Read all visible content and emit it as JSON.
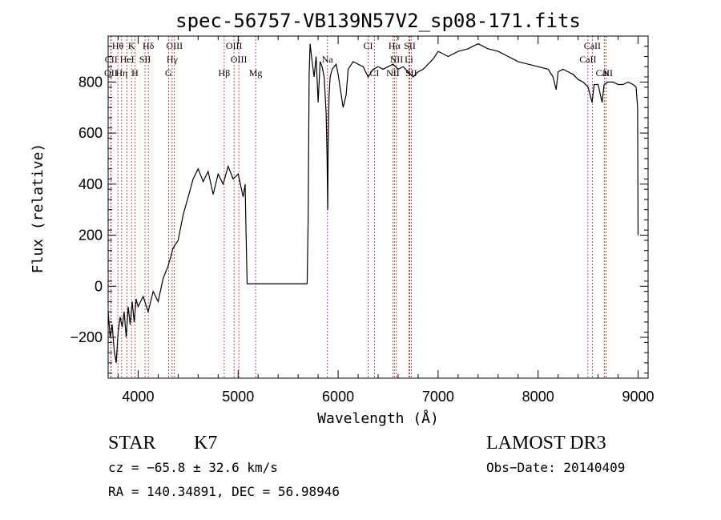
{
  "chart_data": {
    "type": "line",
    "title": "spec-56757-VB139N57V2_sp08-171.fits",
    "xlabel": "Wavelength (Å)",
    "ylabel": "Flux (relative)",
    "xlim": [
      3700,
      9100
    ],
    "ylim": [
      -360,
      980
    ],
    "x_ticks": [
      4000,
      5000,
      6000,
      7000,
      8000,
      9000
    ],
    "y_ticks": [
      -200,
      0,
      200,
      400,
      600,
      800
    ],
    "grid": false,
    "series": [
      {
        "x": [
          3700,
          3720,
          3740,
          3760,
          3780,
          3800,
          3820,
          3840,
          3860,
          3880,
          3900,
          3920,
          3940,
          3960,
          3980,
          4000,
          4050,
          4100,
          4150,
          4200,
          4250,
          4300,
          4350,
          4400,
          4450,
          4500,
          4550,
          4600,
          4650,
          4700,
          4750,
          4800,
          4850,
          4900,
          4950,
          5000,
          5050,
          5070,
          5080,
          5090,
          5100,
          5200,
          5400,
          5600,
          5690,
          5700,
          5710,
          5720,
          5740,
          5760,
          5780,
          5800,
          5820,
          5840,
          5860,
          5880,
          5890,
          5896,
          5900,
          5910,
          5920,
          5940,
          5960,
          5980,
          6000,
          6050,
          6080,
          6100,
          6150,
          6200,
          6250,
          6300,
          6350,
          6400,
          6450,
          6500,
          6550,
          6600,
          6650,
          6700,
          6750,
          6800,
          6850,
          6900,
          6950,
          7000,
          7100,
          7200,
          7300,
          7400,
          7500,
          7600,
          7700,
          7800,
          7900,
          8000,
          8100,
          8150,
          8180,
          8200,
          8250,
          8300,
          8350,
          8400,
          8450,
          8500,
          8540,
          8560,
          8600,
          8640,
          8660,
          8700,
          8750,
          8800,
          8850,
          8900,
          8950,
          8980,
          8995,
          9000
        ],
        "y": [
          -100,
          -200,
          -150,
          -250,
          -300,
          -180,
          -120,
          -160,
          -100,
          -200,
          -80,
          -150,
          -60,
          -140,
          -50,
          -80,
          -40,
          -100,
          -20,
          -60,
          30,
          80,
          150,
          180,
          280,
          350,
          420,
          460,
          410,
          450,
          360,
          440,
          400,
          470,
          420,
          440,
          350,
          400,
          200,
          10,
          10,
          10,
          10,
          10,
          10,
          250,
          830,
          950,
          880,
          820,
          900,
          720,
          880,
          860,
          820,
          680,
          500,
          300,
          550,
          750,
          820,
          850,
          860,
          870,
          830,
          700,
          750,
          850,
          880,
          870,
          860,
          820,
          850,
          860,
          850,
          860,
          870,
          850,
          860,
          840,
          820,
          840,
          850,
          870,
          890,
          920,
          900,
          920,
          930,
          950,
          930,
          920,
          900,
          880,
          870,
          860,
          850,
          820,
          770,
          840,
          850,
          840,
          830,
          810,
          800,
          780,
          720,
          790,
          790,
          720,
          790,
          800,
          800,
          790,
          790,
          800,
          790,
          780,
          700,
          200
        ]
      }
    ],
    "line_markers": [
      {
        "label": "Hθ",
        "x": 3797,
        "row": 1
      },
      {
        "label": "K",
        "x": 3934,
        "row": 1
      },
      {
        "label": "Hδ",
        "x": 4102,
        "row": 1
      },
      {
        "label": "OIII",
        "x": 4363,
        "row": 1
      },
      {
        "label": "OIII",
        "x": 4959,
        "row": 1
      },
      {
        "label": "CI",
        "x": 6300,
        "row": 1
      },
      {
        "label": "Hα",
        "x": 6563,
        "row": 1
      },
      {
        "label": "SII",
        "x": 6717,
        "row": 1
      },
      {
        "label": "CaII",
        "x": 8542,
        "row": 1
      },
      {
        "label": "CII",
        "x": 3730,
        "row": 2
      },
      {
        "label": "HeI",
        "x": 3889,
        "row": 2
      },
      {
        "label": "SII",
        "x": 4069,
        "row": 2
      },
      {
        "label": "Hγ",
        "x": 4340,
        "row": 2
      },
      {
        "label": "OIII",
        "x": 5007,
        "row": 2
      },
      {
        "label": "Na",
        "x": 5893,
        "row": 2
      },
      {
        "label": "NII",
        "x": 6584,
        "row": 2
      },
      {
        "label": "Li",
        "x": 6708,
        "row": 2
      },
      {
        "label": "CaII",
        "x": 8498,
        "row": 2
      },
      {
        "label": "OII",
        "x": 3727,
        "row": 3
      },
      {
        "label": "Hη",
        "x": 3835,
        "row": 3
      },
      {
        "label": "H",
        "x": 3968,
        "row": 3
      },
      {
        "label": "G",
        "x": 4304,
        "row": 3
      },
      {
        "label": "Hβ",
        "x": 4861,
        "row": 3
      },
      {
        "label": "Mg",
        "x": 5175,
        "row": 3
      },
      {
        "label": "CI",
        "x": 6363,
        "row": 3
      },
      {
        "label": "NII",
        "x": 6548,
        "row": 3
      },
      {
        "label": "SII",
        "x": 6731,
        "row": 3
      },
      {
        "label": "CaII",
        "x": 8662,
        "row": 3
      },
      {
        "label": "N",
        "x": 8680,
        "row": 3
      }
    ]
  },
  "info": {
    "object_class": "STAR",
    "subclass": "K7",
    "survey": "LAMOST DR3",
    "cz": "cz = −65.8 ± 32.6 km/s",
    "obs_date": "Obs−Date: 20140409",
    "coords": "RA = 140.34891, DEC =  56.98946"
  }
}
